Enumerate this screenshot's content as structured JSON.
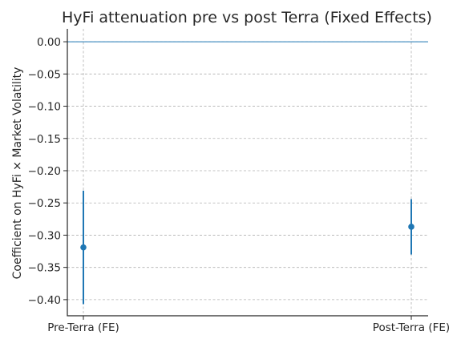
{
  "chart_data": {
    "type": "scatter",
    "title": "HyFi attenuation pre vs post Terra (Fixed Effects)",
    "xlabel": "",
    "ylabel": "Coefficient on HyFi × Market Volatility",
    "categories": [
      "Pre-Terra (FE)",
      "Post-Terra (FE)"
    ],
    "series": [
      {
        "estimate": [
          -0.319,
          -0.287
        ],
        "ci_low": [
          -0.407,
          -0.33
        ],
        "ci_high": [
          -0.231,
          -0.244
        ]
      }
    ],
    "reference_line_y": 0.0,
    "ylim": [
      -0.425,
      0.02
    ],
    "yticks": [
      0.0,
      -0.05,
      -0.1,
      -0.15,
      -0.2,
      -0.25,
      -0.3,
      -0.35,
      -0.4
    ],
    "ytick_labels": [
      "0.00",
      "−0.05",
      "−0.10",
      "−0.15",
      "−0.20",
      "−0.25",
      "−0.30",
      "−0.35",
      "−0.40"
    ],
    "grid": true,
    "colors": {
      "series": "#1f77b4",
      "grid": "#b0b0b0",
      "text": "#262626"
    }
  }
}
